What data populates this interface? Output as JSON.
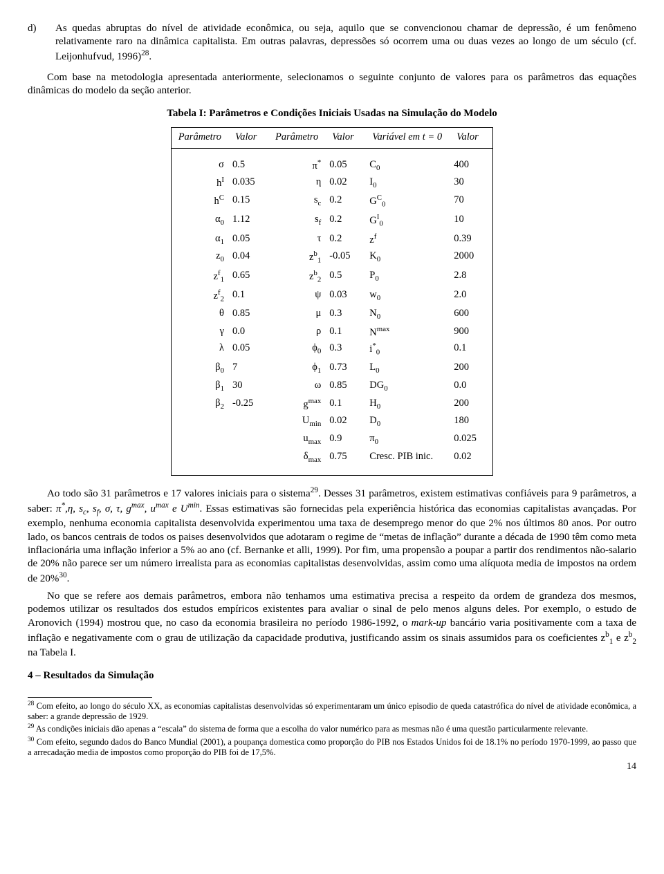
{
  "list_d": {
    "marker": "d)",
    "text": "As quedas abruptas do nível de atividade econômica, ou seja, aquilo que se convencionou chamar de depressão, é um fenômeno relativamente raro na dinâmica capitalista. Em outras palavras, depressões só ocorrem uma ou duas vezes ao longo de um século (cf. Leijonhufvud, 1996)",
    "sup": "28",
    "tail": "."
  },
  "intro_para": "Com base na metodologia apresentada anteriormente, selecionamos o seguinte conjunto de valores para os parâmetros das equações dinâmicas do modelo da seção anterior.",
  "table_title": "Tabela I: Parâmetros e Condições Iniciais Usadas na Simulação do Modelo",
  "headers": {
    "h1a": "Parâmetro",
    "h1b": "Valor",
    "h2a": "Parâmetro",
    "h2b": "Valor",
    "h3a": "Variável em t = 0",
    "h3b": "Valor"
  },
  "col1": [
    {
      "s": "σ",
      "v": "0.5"
    },
    {
      "s": "h<sup>I</sup>",
      "v": "0.035"
    },
    {
      "s": "h<sup>C</sup>",
      "v": "0.15"
    },
    {
      "s": "α<sub>0</sub>",
      "v": "1.12"
    },
    {
      "s": "α<sub>1</sub>",
      "v": "0.05"
    },
    {
      "s": "z<sub>0</sub>",
      "v": "0.04"
    },
    {
      "s": "z<sup>f</sup><sub>1</sub>",
      "v": "0.65"
    },
    {
      "s": "z<sup>f</sup><sub>2</sub>",
      "v": "0.1"
    },
    {
      "s": "θ",
      "v": "0.85"
    },
    {
      "s": "γ",
      "v": "0.0"
    },
    {
      "s": "λ",
      "v": "0.05"
    },
    {
      "s": "β<sub>0</sub>",
      "v": "7"
    },
    {
      "s": "β<sub>1</sub>",
      "v": "30"
    },
    {
      "s": "β<sub>2</sub>",
      "v": "-0.25"
    }
  ],
  "col2": [
    {
      "s": "π<sup>*</sup>",
      "v": "0.05"
    },
    {
      "s": "η",
      "v": "0.02"
    },
    {
      "s": "s<sub>c</sub>",
      "v": "0.2"
    },
    {
      "s": "s<sub>f</sub>",
      "v": "0.2"
    },
    {
      "s": "τ",
      "v": "0.2"
    },
    {
      "s": "z<sup>b</sup><sub>1</sub>",
      "v": "-0.05"
    },
    {
      "s": "z<sup>b</sup><sub>2</sub>",
      "v": "0.5"
    },
    {
      "s": "ψ",
      "v": "0.03"
    },
    {
      "s": "μ",
      "v": "0.3"
    },
    {
      "s": "ρ",
      "v": "0.1"
    },
    {
      "s": "ϕ<sub>0</sub>",
      "v": "0.3"
    },
    {
      "s": "ϕ<sub>1</sub>",
      "v": "0.73"
    },
    {
      "s": "ω",
      "v": "0.85"
    },
    {
      "s": "g<sup>max</sup>",
      "v": "0.1"
    },
    {
      "s": "U<sub>min</sub>",
      "v": "0.02"
    },
    {
      "s": "u<sub>max</sub>",
      "v": "0.9"
    },
    {
      "s": "δ<sub>max</sub>",
      "v": "0.75"
    }
  ],
  "col3": [
    {
      "s": "C<sub>0</sub>",
      "v": "400"
    },
    {
      "s": "I<sub>0</sub>",
      "v": "30"
    },
    {
      "s": "G<sup>C</sup><sub>0</sub>",
      "v": "70"
    },
    {
      "s": "G<sup>I</sup><sub>0</sub>",
      "v": "10"
    },
    {
      "s": "z<sup>f</sup>",
      "v": "0.39"
    },
    {
      "s": "K<sub>0</sub>",
      "v": "2000"
    },
    {
      "s": "P<sub>0</sub>",
      "v": "2.8"
    },
    {
      "s": "w<sub>0</sub>",
      "v": "2.0"
    },
    {
      "s": "N<sub>0</sub>",
      "v": "600"
    },
    {
      "s": "N<sup>max</sup>",
      "v": "900"
    },
    {
      "s": "i<sup>*</sup><sub>0</sub>",
      "v": "0.1"
    },
    {
      "s": "L<sub>0</sub>",
      "v": "200"
    },
    {
      "s": "DG<sub>0</sub>",
      "v": "0.0"
    },
    {
      "s": "H<sub>0</sub>",
      "v": "200"
    },
    {
      "s": "D<sub>0</sub>",
      "v": "180"
    },
    {
      "s": "π<sub>0</sub>",
      "v": "0.025"
    },
    {
      "s": "Cresc. PIB inic.",
      "v": "0.02"
    }
  ],
  "para2_pre": "Ao todo são 31 parâmetros e 17 valores iniciais para o sistema",
  "para2_sup": "29",
  "para2_mid": ". Desses 31 parâmetros, existem estimativas confiáveis para 9 parâmetros, a saber: ",
  "para2_symbols": "π<sup>*</sup>,η, s<sub>c</sub>, s<sub>f</sub>, σ, τ, g<sup>max</sup>, u<sup>max</sup> e U<sup>min</sup>",
  "para2_post": ". Essas estimativas são fornecidas pela experiência histórica das economias capitalistas avançadas. Por exemplo, nenhuma economia capitalista desenvolvida experimentou uma taxa de desemprego menor do que 2% nos últimos 80 anos. Por outro lado, os bancos centrais de todos os paises desenvolvidos que adotaram o regime de “metas de inflação” durante a década de 1990 têm como meta inflacionária uma inflação inferior a 5% ao ano (cf. Bernanke et alli, 1999). Por fim, uma propensão a poupar a partir dos rendimentos não-salario de 20% não parece ser um número irrealista para as economias capitalistas desenvolvidas, assim como uma alíquota media de impostos na ordem de 20%",
  "para2_sup2": "30",
  "para2_tail": ".",
  "para3_pre": "No que se refere aos demais parâmetros, embora não tenhamos uma estimativa precisa a respeito da ordem de grandeza dos mesmos, podemos utilizar os resultados dos estudos empíricos existentes para avaliar o sinal de pelo menos alguns deles. Por exemplo, o estudo de Aronovich (1994) mostrou que, no caso da economia brasileira no período 1986-1992, o ",
  "para3_it": "mark-up",
  "para3_mid": " bancário varia positivamente com a taxa de inflação e negativamente com o grau de utilização da capacidade produtiva, justificando assim os sinais assumidos para os coeficientes ",
  "para3_sym": "z<sup>b</sup><sub>1</sub> e z<sup>b</sup><sub>2</sub>",
  "para3_tail": " na Tabela I.",
  "section4": "4 – Resultados da Simulação",
  "fn28_sup": "28",
  "fn28": " Com efeito, ao longo do século XX, as economias capitalistas desenvolvidas só experimentaram um único episodio de queda catastrófica do nível de atividade econômica, a saber: a grande depressão de 1929.",
  "fn29_sup": "29",
  "fn29": " As condições iniciais dão apenas a “escala” do sistema de forma que a escolha do valor numérico para as mesmas não é uma questão particularmente relevante.",
  "fn30_sup": "30",
  "fn30": " Com efeito, segundo dados do Banco Mundial (2001), a poupança domestica como proporção do PIB nos Estados Unidos foi de 18.1% no período 1970-1999, ao passo que a arrecadação media de impostos como proporção do PIB foi de 17,5%.",
  "pagenum": "14"
}
